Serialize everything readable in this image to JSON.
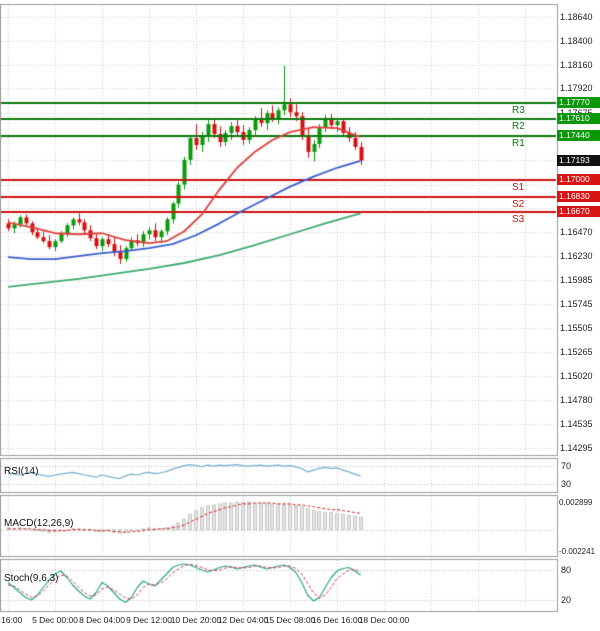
{
  "colors": {
    "up": "#0a9a0a",
    "down": "#d61010",
    "resistance_line": "#0b7a0b",
    "support_line": "#cf1010",
    "badge_resistance": "#089808",
    "badge_support": "#d81414",
    "badge_last": "#111111",
    "ma_fast": "#e04040",
    "ma_mid": "#3a5fd0",
    "ma_slow": "#3faa70",
    "rsi_line": "#76aed0",
    "macd_signal": "#d84040",
    "macd_hist_fill": "#e4e4e4",
    "macd_hist_stroke": "#adadad",
    "stoch_k": "#2ba890",
    "stoch_d": "#d84040"
  },
  "chart_data": {
    "type": "candlestick",
    "last_price": 1.17193,
    "y_range": [
      1.14295,
      1.1864
    ],
    "y_ticks_visible": [
      "1.18640",
      "1.18400",
      "1.18160",
      "1.17920",
      "1.17675",
      "1.16470",
      "1.16230",
      "1.15985",
      "1.15745",
      "1.15505",
      "1.15265",
      "1.15020",
      "1.14780",
      "1.14535",
      "1.14295"
    ],
    "y_grid": [
      1.1864,
      1.184,
      1.1816,
      1.1792,
      1.17675,
      1.17435,
      1.17195,
      1.1695,
      1.1671,
      1.1647,
      1.1623,
      1.15985,
      1.15745,
      1.15505,
      1.15265,
      1.1502,
      1.1478,
      1.14535,
      1.14295
    ],
    "x_labels": [
      "16:00",
      "5 Dec 00:00",
      "8 Dec 04:00",
      "9 Dec 12:00",
      "10 Dec 20:00",
      "12 Dec 04:00",
      "15 Dec 08:00",
      "16 Dec 16:00",
      "18 Dec 00:00"
    ],
    "resistance_levels": [
      {
        "label": "R3",
        "price": 1.1777
      },
      {
        "label": "R2",
        "price": 1.1761
      },
      {
        "label": "R1",
        "price": 1.1744
      }
    ],
    "support_levels": [
      {
        "label": "S1",
        "price": 1.17
      },
      {
        "label": "S2",
        "price": 1.1683
      },
      {
        "label": "S3",
        "price": 1.1667
      }
    ],
    "price_badges": [
      {
        "text": "1.17770",
        "price": 1.1777,
        "kind": "resistance"
      },
      {
        "text": "1.17610",
        "price": 1.1761,
        "kind": "resistance"
      },
      {
        "text": "1.17440",
        "price": 1.1744,
        "kind": "resistance"
      },
      {
        "text": "1.17193",
        "price": 1.17193,
        "kind": "last"
      },
      {
        "text": "1.17000",
        "price": 1.17,
        "kind": "support"
      },
      {
        "text": "1.16830",
        "price": 1.1683,
        "kind": "support"
      },
      {
        "text": "1.16670",
        "price": 1.1667,
        "kind": "support"
      }
    ],
    "candles": [
      [
        1.1656,
        1.166,
        1.1648,
        1.1651
      ],
      [
        1.1651,
        1.1658,
        1.1646,
        1.1655
      ],
      [
        1.1655,
        1.1664,
        1.1652,
        1.1662
      ],
      [
        1.1662,
        1.1665,
        1.1654,
        1.1656
      ],
      [
        1.1656,
        1.1658,
        1.1644,
        1.1647
      ],
      [
        1.1647,
        1.1652,
        1.164,
        1.1642
      ],
      [
        1.1642,
        1.1648,
        1.1636,
        1.1638
      ],
      [
        1.1638,
        1.1644,
        1.163,
        1.1632
      ],
      [
        1.1632,
        1.164,
        1.1628,
        1.1638
      ],
      [
        1.1638,
        1.1648,
        1.1636,
        1.1646
      ],
      [
        1.1646,
        1.1656,
        1.1642,
        1.1654
      ],
      [
        1.1654,
        1.1662,
        1.165,
        1.166
      ],
      [
        1.166,
        1.1666,
        1.1654,
        1.1657
      ],
      [
        1.1657,
        1.166,
        1.1646,
        1.1649
      ],
      [
        1.1649,
        1.1654,
        1.1638,
        1.1641
      ],
      [
        1.1641,
        1.1645,
        1.163,
        1.1633
      ],
      [
        1.1633,
        1.1642,
        1.1628,
        1.164
      ],
      [
        1.164,
        1.1645,
        1.1632,
        1.1635
      ],
      [
        1.1635,
        1.1643,
        1.1623,
        1.1627
      ],
      [
        1.1627,
        1.1634,
        1.1615,
        1.162
      ],
      [
        1.162,
        1.1633,
        1.1617,
        1.1631
      ],
      [
        1.1631,
        1.1642,
        1.1628,
        1.1639
      ],
      [
        1.1639,
        1.1645,
        1.1633,
        1.1636
      ],
      [
        1.1636,
        1.1648,
        1.1632,
        1.1645
      ],
      [
        1.1645,
        1.1652,
        1.164,
        1.1649
      ],
      [
        1.1649,
        1.1656,
        1.1638,
        1.1642
      ],
      [
        1.1642,
        1.165,
        1.1636,
        1.1648
      ],
      [
        1.1648,
        1.1662,
        1.1644,
        1.166
      ],
      [
        1.166,
        1.1678,
        1.1656,
        1.1676
      ],
      [
        1.1676,
        1.1698,
        1.1672,
        1.1695
      ],
      [
        1.1695,
        1.1723,
        1.169,
        1.172
      ],
      [
        1.172,
        1.1745,
        1.1715,
        1.1742
      ],
      [
        1.1742,
        1.1756,
        1.173,
        1.1735
      ],
      [
        1.1735,
        1.1748,
        1.1728,
        1.1744
      ],
      [
        1.1744,
        1.176,
        1.1738,
        1.1756
      ],
      [
        1.1756,
        1.1762,
        1.1742,
        1.1746
      ],
      [
        1.1746,
        1.1754,
        1.1733,
        1.1738
      ],
      [
        1.1738,
        1.175,
        1.1734,
        1.1747
      ],
      [
        1.1747,
        1.1758,
        1.174,
        1.1754
      ],
      [
        1.1754,
        1.176,
        1.1744,
        1.1748
      ],
      [
        1.1748,
        1.1755,
        1.1735,
        1.174
      ],
      [
        1.174,
        1.1753,
        1.1736,
        1.175
      ],
      [
        1.175,
        1.1764,
        1.1745,
        1.1761
      ],
      [
        1.1761,
        1.1772,
        1.1753,
        1.1757
      ],
      [
        1.1757,
        1.177,
        1.175,
        1.1767
      ],
      [
        1.1767,
        1.1775,
        1.1758,
        1.1762
      ],
      [
        1.1762,
        1.1773,
        1.1756,
        1.177
      ],
      [
        1.177,
        1.1815,
        1.1765,
        1.1776
      ],
      [
        1.1776,
        1.1782,
        1.1763,
        1.1768
      ],
      [
        1.1768,
        1.1776,
        1.1759,
        1.1764
      ],
      [
        1.1764,
        1.1768,
        1.174,
        1.1745
      ],
      [
        1.1745,
        1.1752,
        1.1722,
        1.1728
      ],
      [
        1.1728,
        1.174,
        1.1718,
        1.1736
      ],
      [
        1.1736,
        1.1756,
        1.1732,
        1.1753
      ],
      [
        1.1753,
        1.1765,
        1.1748,
        1.1761
      ],
      [
        1.1761,
        1.1766,
        1.1751,
        1.1755
      ],
      [
        1.1755,
        1.1762,
        1.1748,
        1.1759
      ],
      [
        1.1759,
        1.1762,
        1.1744,
        1.1747
      ],
      [
        1.1747,
        1.1753,
        1.1738,
        1.1742
      ],
      [
        1.1742,
        1.1748,
        1.173,
        1.1733
      ],
      [
        1.1733,
        1.1738,
        1.1715,
        1.17193
      ]
    ],
    "ma_fast": [
      [
        0,
        1.1657
      ],
      [
        4,
        1.1652
      ],
      [
        8,
        1.1646
      ],
      [
        12,
        1.1645
      ],
      [
        16,
        1.1646
      ],
      [
        20,
        1.1639
      ],
      [
        24,
        1.1636
      ],
      [
        27,
        1.1638
      ],
      [
        30,
        1.1648
      ],
      [
        33,
        1.1665
      ],
      [
        36,
        1.169
      ],
      [
        39,
        1.1712
      ],
      [
        42,
        1.1728
      ],
      [
        45,
        1.174
      ],
      [
        48,
        1.1748
      ],
      [
        52,
        1.1753
      ],
      [
        56,
        1.1752
      ],
      [
        60,
        1.1743
      ]
    ],
    "ma_mid": [
      [
        0,
        1.1622
      ],
      [
        4,
        1.162
      ],
      [
        8,
        1.162
      ],
      [
        12,
        1.1623
      ],
      [
        16,
        1.1626
      ],
      [
        20,
        1.1628
      ],
      [
        24,
        1.1631
      ],
      [
        28,
        1.1635
      ],
      [
        32,
        1.1644
      ],
      [
        36,
        1.1656
      ],
      [
        40,
        1.1669
      ],
      [
        44,
        1.1681
      ],
      [
        48,
        1.1693
      ],
      [
        52,
        1.1703
      ],
      [
        56,
        1.1712
      ],
      [
        60,
        1.1719
      ]
    ],
    "ma_slow": [
      [
        0,
        1.1592
      ],
      [
        6,
        1.1596
      ],
      [
        12,
        1.16
      ],
      [
        18,
        1.1605
      ],
      [
        24,
        1.161
      ],
      [
        30,
        1.1616
      ],
      [
        36,
        1.1624
      ],
      [
        42,
        1.1634
      ],
      [
        48,
        1.1645
      ],
      [
        54,
        1.1656
      ],
      [
        60,
        1.1666
      ]
    ],
    "rsi": {
      "label": "RSI(14)",
      "levels": [
        70,
        30
      ],
      "values": [
        54,
        52,
        50,
        53,
        55,
        52,
        49,
        47,
        50,
        52,
        54,
        56,
        53,
        50,
        48,
        45,
        50,
        47,
        44,
        42,
        48,
        52,
        50,
        54,
        56,
        53,
        55,
        58,
        63,
        67,
        71,
        73,
        71,
        69,
        72,
        70,
        72,
        71,
        72,
        73,
        71,
        70,
        71,
        72,
        70,
        71,
        72,
        70,
        71,
        68,
        64,
        57,
        61,
        65,
        67,
        65,
        66,
        61,
        57,
        52,
        48
      ]
    },
    "macd": {
      "label": "MACD(12,26,9)",
      "axis_labels": [
        "0.002899",
        "-0.002241"
      ],
      "axis_max": 0.002899,
      "axis_min": -0.002241,
      "macd": [
        0.0002,
        0.0001,
        0.0002,
        0.0001,
        0.0,
        -0.0001,
        -0.0002,
        -0.0003,
        -0.0002,
        -0.0001,
        0.0,
        0.0001,
        0.0001,
        0.0,
        -0.0001,
        -0.0002,
        -0.0002,
        -0.0001,
        -0.0003,
        -0.0004,
        -0.0003,
        -0.0001,
        0.0,
        0.0001,
        0.0002,
        0.0001,
        0.0001,
        0.0002,
        0.0004,
        0.0007,
        0.0011,
        0.0016,
        0.002,
        0.0023,
        0.0025,
        0.0026,
        0.0027,
        0.0028,
        0.0028,
        0.0029,
        0.0029,
        0.0029,
        0.0028,
        0.0028,
        0.0028,
        0.0027,
        0.0027,
        0.0026,
        0.0026,
        0.0025,
        0.0024,
        0.0022,
        0.002,
        0.0019,
        0.0018,
        0.0018,
        0.0017,
        0.0016,
        0.0015,
        0.0014,
        0.0013
      ],
      "signal": [
        0.0001,
        0.0001,
        0.0001,
        0.0001,
        0.0001,
        0.0,
        0.0,
        -0.0001,
        -0.0001,
        -0.0001,
        -0.0001,
        0.0,
        0.0,
        0.0,
        0.0,
        -0.0001,
        -0.0001,
        -0.0001,
        -0.0002,
        -0.0002,
        -0.0003,
        -0.0002,
        -0.0002,
        -0.0001,
        0.0,
        0.0,
        0.0001,
        0.0001,
        0.0002,
        0.0003,
        0.0005,
        0.0008,
        0.0011,
        0.0014,
        0.0017,
        0.0019,
        0.0021,
        0.0023,
        0.0024,
        0.0026,
        0.0027,
        0.0027,
        0.0028,
        0.0028,
        0.0028,
        0.0028,
        0.0027,
        0.0027,
        0.0027,
        0.0026,
        0.0026,
        0.0025,
        0.0024,
        0.0023,
        0.0022,
        0.0021,
        0.0021,
        0.002,
        0.0019,
        0.0018,
        0.0017
      ]
    },
    "stoch": {
      "label": "Stoch(9,6,3)",
      "levels": [
        80,
        20
      ],
      "k": [
        55,
        45,
        35,
        25,
        20,
        30,
        45,
        60,
        72,
        78,
        65,
        50,
        38,
        28,
        22,
        35,
        55,
        48,
        35,
        22,
        15,
        25,
        45,
        58,
        52,
        48,
        60,
        72,
        85,
        90,
        92,
        90,
        85,
        80,
        76,
        80,
        85,
        88,
        86,
        82,
        85,
        88,
        90,
        86,
        82,
        85,
        88,
        90,
        85,
        75,
        55,
        30,
        18,
        25,
        45,
        65,
        78,
        83,
        85,
        78,
        70
      ],
      "d": [
        50,
        48,
        40,
        32,
        25,
        28,
        38,
        50,
        62,
        70,
        68,
        58,
        45,
        35,
        28,
        30,
        42,
        46,
        40,
        32,
        24,
        22,
        30,
        45,
        52,
        50,
        54,
        62,
        74,
        82,
        89,
        91,
        89,
        85,
        80,
        79,
        80,
        84,
        86,
        85,
        84,
        85,
        88,
        88,
        85,
        84,
        85,
        88,
        88,
        83,
        72,
        53,
        34,
        24,
        30,
        45,
        63,
        72,
        80,
        82,
        76
      ]
    }
  }
}
